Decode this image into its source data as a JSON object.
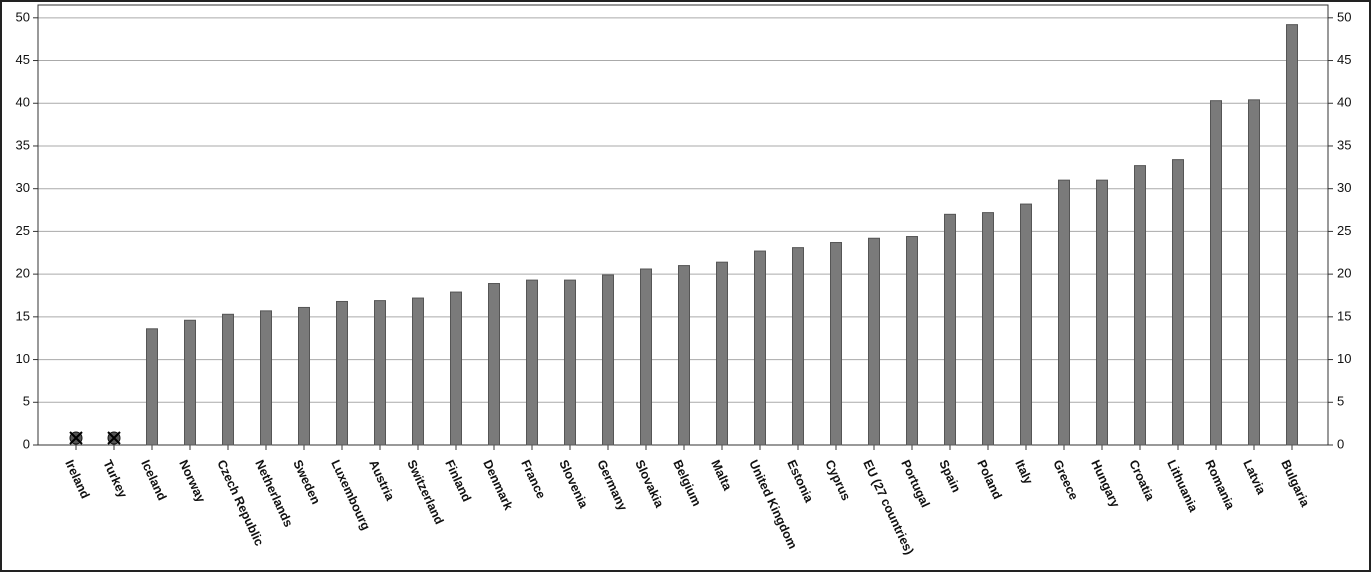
{
  "chart_data": {
    "type": "bar",
    "categories": [
      "Ireland",
      "Turkey",
      "Iceland",
      "Norway",
      "Czech Republic",
      "Netherlands",
      "Sweden",
      "Luxembourg",
      "Austria",
      "Switzerland",
      "Finland",
      "Denmark",
      "France",
      "Slovenia",
      "Germany",
      "Slovakia",
      "Belgium",
      "Malta",
      "United Kingdom",
      "Estonia",
      "Cyprus",
      "EU (27 countries)",
      "Portugal",
      "Spain",
      "Poland",
      "Italy",
      "Greece",
      "Hungary",
      "Croatia",
      "Lithuania",
      "Romania",
      "Latvia",
      "Bulgaria"
    ],
    "values": [
      null,
      null,
      13.6,
      14.6,
      15.3,
      15.7,
      16.1,
      16.8,
      16.9,
      17.2,
      17.9,
      18.9,
      19.3,
      19.3,
      19.9,
      20.6,
      21.0,
      21.4,
      22.7,
      23.1,
      23.7,
      24.2,
      24.4,
      27.0,
      27.2,
      28.2,
      31.0,
      31.0,
      32.7,
      33.4,
      40.3,
      40.4,
      49.2
    ],
    "color": "#7a7a7a",
    "ylim": [
      0,
      51.5
    ],
    "yticks": [
      0,
      5,
      10,
      15,
      20,
      25,
      30,
      35,
      40,
      45,
      50
    ],
    "grid": true
  }
}
